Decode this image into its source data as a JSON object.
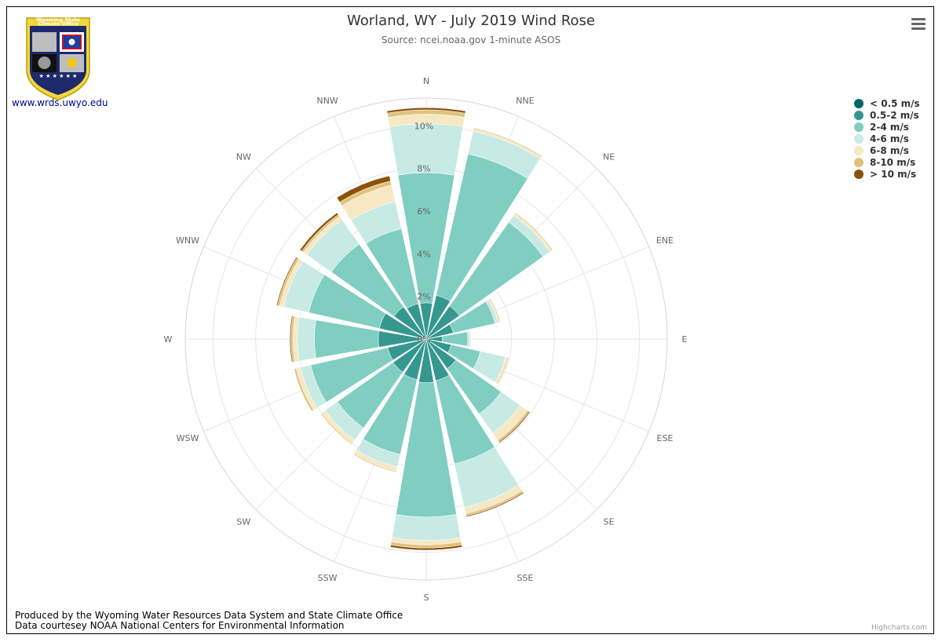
{
  "title": "Worland, WY - July 2019 Wind Rose",
  "subtitle": "Source: ncei.noaa.gov 1-minute ASOS",
  "logo": {
    "line1": "Wyoming State",
    "line2": "Climate Office",
    "link_text": "www.wrds.uwyo.edu"
  },
  "footer": {
    "line1": "Produced by the Wyoming Water Resources Data System and State Climate Office",
    "line2": "Data courtesey NOAA National Centers for Environmental Information"
  },
  "credits": "Highcharts.com",
  "menu_icon": "hamburger-menu-icon",
  "chart_data": {
    "type": "windrose",
    "stacking": "percent-of-observations",
    "categories": [
      "N",
      "NNE",
      "NE",
      "ENE",
      "E",
      "ESE",
      "SE",
      "SSE",
      "S",
      "SSW",
      "SW",
      "WSW",
      "W",
      "WNW",
      "NW",
      "NNW"
    ],
    "y_ticks": [
      0,
      2,
      4,
      6,
      8,
      10
    ],
    "y_tick_labels": [
      "0%",
      "2%",
      "4%",
      "6%",
      "8%",
      "10%"
    ],
    "ylim": [
      0,
      11.3
    ],
    "legend_position": "top-right",
    "grid": true,
    "series": [
      {
        "name": "< 0.5 m/s",
        "color": "#01665e",
        "values": [
          0.15,
          0.15,
          0.15,
          0.1,
          0.1,
          0.1,
          0.1,
          0.1,
          0.1,
          0.1,
          0.1,
          0.1,
          0.15,
          0.15,
          0.15,
          0.15
        ]
      },
      {
        "name": "0.5-2 m/s",
        "color": "#35978f",
        "values": [
          1.55,
          1.95,
          1.75,
          1.2,
          0.65,
          1.1,
          1.6,
          1.9,
          1.95,
          1.85,
          1.8,
          1.75,
          2.1,
          2.1,
          1.7,
          1.55
        ]
      },
      {
        "name": "2-4 m/s",
        "color": "#80cdc1",
        "values": [
          6.1,
          6.8,
          4.8,
          2.0,
          1.2,
          1.4,
          2.6,
          4.0,
          6.3,
          3.6,
          3.2,
          3.7,
          3.0,
          3.4,
          3.6,
          3.6
        ]
      },
      {
        "name": "4-6 m/s",
        "color": "#c7eae5",
        "values": [
          2.3,
          1.1,
          0.4,
          0.15,
          0.1,
          1.2,
          1.1,
          2.1,
          1.1,
          0.6,
          0.7,
          0.5,
          0.8,
          1.2,
          1.4,
          1.3
        ]
      },
      {
        "name": "6-8 m/s",
        "color": "#f6e8c3",
        "values": [
          0.45,
          0.1,
          0.1,
          0.05,
          0.05,
          0.1,
          0.4,
          0.3,
          0.2,
          0.2,
          0.2,
          0.2,
          0.2,
          0.2,
          0.2,
          0.8
        ]
      },
      {
        "name": "8-10 m/s",
        "color": "#dfc27d",
        "values": [
          0.2,
          0.05,
          0.05,
          0.05,
          0.0,
          0.05,
          0.1,
          0.1,
          0.15,
          0.05,
          0.05,
          0.1,
          0.1,
          0.1,
          0.1,
          0.2
        ]
      },
      {
        "name": "> 10 m/s",
        "color": "#8c510a",
        "values": [
          0.1,
          0.0,
          0.0,
          0.0,
          0.0,
          0.0,
          0.05,
          0.05,
          0.1,
          0.0,
          0.0,
          0.0,
          0.05,
          0.05,
          0.1,
          0.25
        ]
      }
    ]
  }
}
